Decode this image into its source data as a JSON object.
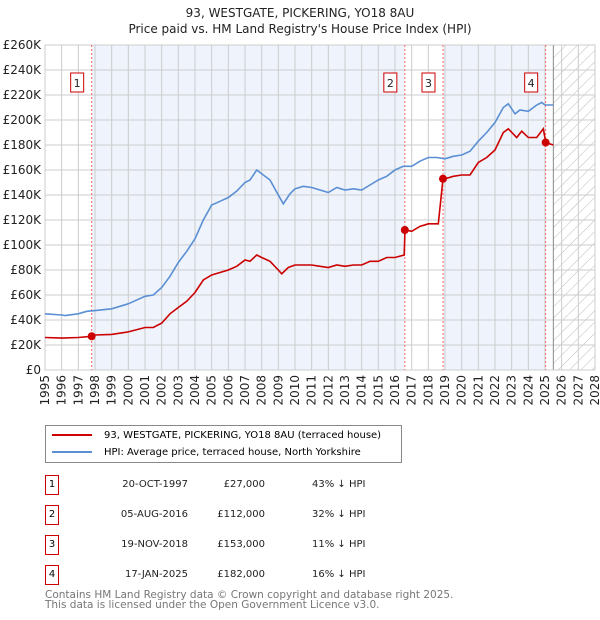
{
  "chart_data": {
    "type": "line",
    "title": "93, WESTGATE, PICKERING, YO18 8AU",
    "subtitle": "Price paid vs. HM Land Registry's House Price Index (HPI)",
    "xlim": [
      1995,
      2028
    ],
    "ylim": [
      0,
      260000
    ],
    "y_ticks": [
      0,
      20000,
      40000,
      60000,
      80000,
      100000,
      120000,
      140000,
      160000,
      180000,
      200000,
      220000,
      240000,
      260000
    ],
    "y_tick_labels": [
      "£0",
      "£20K",
      "£40K",
      "£60K",
      "£80K",
      "£100K",
      "£120K",
      "£140K",
      "£160K",
      "£180K",
      "£200K",
      "£220K",
      "£240K",
      "£260K"
    ],
    "x_ticks": [
      1995,
      1996,
      1997,
      1998,
      1999,
      2000,
      2001,
      2002,
      2003,
      2004,
      2005,
      2006,
      2007,
      2008,
      2009,
      2010,
      2011,
      2012,
      2013,
      2014,
      2015,
      2016,
      2017,
      2018,
      2019,
      2020,
      2021,
      2022,
      2023,
      2024,
      2025,
      2026,
      2027,
      2028
    ],
    "grid": true,
    "forecast_start": 2025.5,
    "colors": {
      "property": "#cc0000",
      "hpi": "#5b8fd4",
      "shade": "#eef3fc",
      "vline": "#ff6666"
    },
    "series": [
      {
        "name": "93, WESTGATE, PICKERING, YO18 8AU (terraced house)",
        "color": "#cc0000",
        "x": [
          1995,
          1996,
          1997,
          1997.8,
          1998,
          1999,
          2000,
          2001,
          2001.5,
          2002,
          2002.5,
          2003,
          2003.5,
          2004,
          2004.5,
          2005,
          2005.5,
          2006,
          2006.5,
          2007,
          2007.3,
          2007.7,
          2008,
          2008.5,
          2009,
          2009.2,
          2009.6,
          2010,
          2011,
          2011.5,
          2012,
          2012.5,
          2013,
          2013.5,
          2014,
          2014.5,
          2015,
          2015.5,
          2016,
          2016.55,
          2016.6,
          2017,
          2017.5,
          2018,
          2018.6,
          2018.88,
          2019,
          2019.5,
          2020,
          2020.5,
          2021,
          2021.5,
          2022,
          2022.5,
          2022.8,
          2023.3,
          2023.6,
          2024,
          2024.5,
          2024.9,
          2025.05,
          2025.5
        ],
        "y": [
          26000,
          25500,
          26000,
          27000,
          28000,
          28500,
          30500,
          34000,
          34000,
          37500,
          45000,
          50000,
          55000,
          62000,
          72000,
          76000,
          78000,
          80000,
          83000,
          88000,
          87000,
          92000,
          90000,
          87000,
          80000,
          77000,
          82000,
          84000,
          84000,
          83000,
          82000,
          84000,
          83000,
          84000,
          84000,
          87000,
          87000,
          90000,
          90000,
          92000,
          112000,
          111000,
          115000,
          117000,
          117000,
          153000,
          153000,
          155000,
          156000,
          156000,
          166000,
          170000,
          176000,
          190000,
          193000,
          186000,
          191000,
          186000,
          186000,
          193000,
          182000,
          180000
        ]
      },
      {
        "name": "HPI: Average price, terraced house, North Yorkshire",
        "color": "#5b8fd4",
        "x": [
          1995,
          1996,
          1996.2,
          1997,
          1997.5,
          1998,
          1999,
          2000,
          2001,
          2001.5,
          2002,
          2002.5,
          2003,
          2003.5,
          2004,
          2004.5,
          2005,
          2005.5,
          2006,
          2006.5,
          2007,
          2007.3,
          2007.7,
          2008,
          2008.5,
          2009,
          2009.3,
          2009.7,
          2010,
          2010.5,
          2011,
          2011.5,
          2012,
          2012.5,
          2013,
          2013.5,
          2014,
          2014.5,
          2015,
          2015.5,
          2016,
          2016.5,
          2017,
          2017.5,
          2018,
          2018.5,
          2019,
          2019.5,
          2020,
          2020.5,
          2021,
          2021.5,
          2022,
          2022.5,
          2022.8,
          2023.2,
          2023.5,
          2024,
          2024.5,
          2024.8,
          2025,
          2025.5
        ],
        "y": [
          45000,
          44000,
          43500,
          45000,
          47000,
          47500,
          49000,
          53000,
          59000,
          60000,
          66000,
          75000,
          86000,
          95000,
          105000,
          120000,
          132000,
          135000,
          138000,
          143000,
          150000,
          152000,
          160000,
          157000,
          152000,
          140000,
          133000,
          141000,
          145000,
          147000,
          146000,
          144000,
          142000,
          146000,
          144000,
          145000,
          144000,
          148000,
          152000,
          155000,
          160000,
          163000,
          163000,
          167000,
          170000,
          170000,
          169000,
          171000,
          172000,
          175000,
          183000,
          190000,
          198000,
          210000,
          213000,
          205000,
          208000,
          207000,
          212000,
          214000,
          212000,
          212000
        ]
      }
    ],
    "sales": [
      {
        "label": "1",
        "x": 1997.8,
        "date": "20-OCT-1997",
        "price": "£27,000",
        "value": 27000,
        "hpi": "43% ↓ HPI"
      },
      {
        "label": "2",
        "x": 2016.59,
        "date": "05-AUG-2016",
        "price": "£112,000",
        "value": 112000,
        "hpi": "32% ↓ HPI"
      },
      {
        "label": "3",
        "x": 2018.88,
        "date": "19-NOV-2018",
        "price": "£153,000",
        "value": 153000,
        "hpi": "11% ↓ HPI"
      },
      {
        "label": "4",
        "x": 2025.04,
        "date": "17-JAN-2025",
        "price": "£182,000",
        "value": 182000,
        "hpi": "16% ↓ HPI"
      }
    ]
  },
  "legend": {
    "property": "93, WESTGATE, PICKERING, YO18 8AU (terraced house)",
    "hpi": "HPI: Average price, terraced house, North Yorkshire"
  },
  "footer": {
    "line1": "Contains HM Land Registry data © Crown copyright and database right 2025.",
    "line2": "This data is licensed under the Open Government Licence v3.0."
  }
}
